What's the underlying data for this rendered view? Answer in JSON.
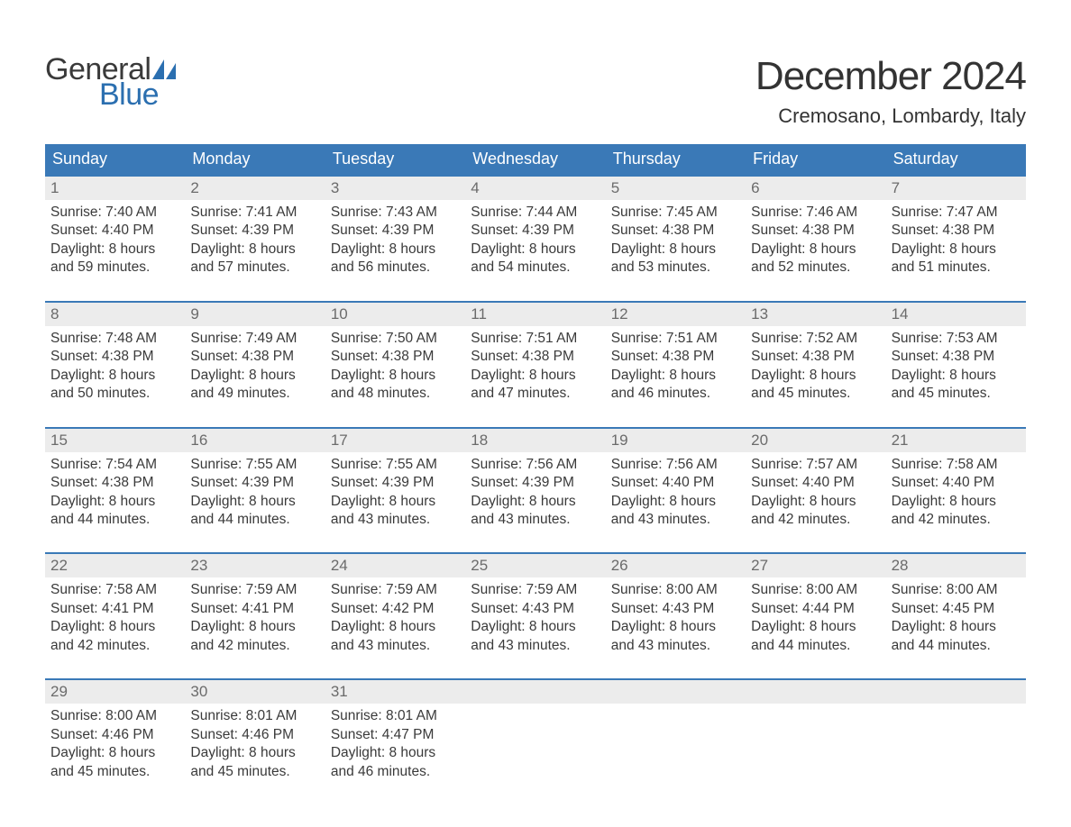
{
  "logo": {
    "text_general": "General",
    "text_blue": "Blue",
    "sail_color": "#2b6fb0"
  },
  "title": "December 2024",
  "location": "Cremosano, Lombardy, Italy",
  "colors": {
    "header_bg": "#3a79b7",
    "header_text": "#ffffff",
    "week_top_border": "#3a79b7",
    "daynum_bg": "#ececec",
    "daynum_text": "#6b6b6b",
    "body_text": "#3a3a3a",
    "page_bg": "#ffffff"
  },
  "day_names": [
    "Sunday",
    "Monday",
    "Tuesday",
    "Wednesday",
    "Thursday",
    "Friday",
    "Saturday"
  ],
  "labels": {
    "sunrise": "Sunrise: ",
    "sunset": "Sunset: ",
    "daylight": "Daylight: "
  },
  "weeks": [
    [
      {
        "n": "1",
        "sr": "7:40 AM",
        "ss": "4:40 PM",
        "dl": "8 hours and 59 minutes."
      },
      {
        "n": "2",
        "sr": "7:41 AM",
        "ss": "4:39 PM",
        "dl": "8 hours and 57 minutes."
      },
      {
        "n": "3",
        "sr": "7:43 AM",
        "ss": "4:39 PM",
        "dl": "8 hours and 56 minutes."
      },
      {
        "n": "4",
        "sr": "7:44 AM",
        "ss": "4:39 PM",
        "dl": "8 hours and 54 minutes."
      },
      {
        "n": "5",
        "sr": "7:45 AM",
        "ss": "4:38 PM",
        "dl": "8 hours and 53 minutes."
      },
      {
        "n": "6",
        "sr": "7:46 AM",
        "ss": "4:38 PM",
        "dl": "8 hours and 52 minutes."
      },
      {
        "n": "7",
        "sr": "7:47 AM",
        "ss": "4:38 PM",
        "dl": "8 hours and 51 minutes."
      }
    ],
    [
      {
        "n": "8",
        "sr": "7:48 AM",
        "ss": "4:38 PM",
        "dl": "8 hours and 50 minutes."
      },
      {
        "n": "9",
        "sr": "7:49 AM",
        "ss": "4:38 PM",
        "dl": "8 hours and 49 minutes."
      },
      {
        "n": "10",
        "sr": "7:50 AM",
        "ss": "4:38 PM",
        "dl": "8 hours and 48 minutes."
      },
      {
        "n": "11",
        "sr": "7:51 AM",
        "ss": "4:38 PM",
        "dl": "8 hours and 47 minutes."
      },
      {
        "n": "12",
        "sr": "7:51 AM",
        "ss": "4:38 PM",
        "dl": "8 hours and 46 minutes."
      },
      {
        "n": "13",
        "sr": "7:52 AM",
        "ss": "4:38 PM",
        "dl": "8 hours and 45 minutes."
      },
      {
        "n": "14",
        "sr": "7:53 AM",
        "ss": "4:38 PM",
        "dl": "8 hours and 45 minutes."
      }
    ],
    [
      {
        "n": "15",
        "sr": "7:54 AM",
        "ss": "4:38 PM",
        "dl": "8 hours and 44 minutes."
      },
      {
        "n": "16",
        "sr": "7:55 AM",
        "ss": "4:39 PM",
        "dl": "8 hours and 44 minutes."
      },
      {
        "n": "17",
        "sr": "7:55 AM",
        "ss": "4:39 PM",
        "dl": "8 hours and 43 minutes."
      },
      {
        "n": "18",
        "sr": "7:56 AM",
        "ss": "4:39 PM",
        "dl": "8 hours and 43 minutes."
      },
      {
        "n": "19",
        "sr": "7:56 AM",
        "ss": "4:40 PM",
        "dl": "8 hours and 43 minutes."
      },
      {
        "n": "20",
        "sr": "7:57 AM",
        "ss": "4:40 PM",
        "dl": "8 hours and 42 minutes."
      },
      {
        "n": "21",
        "sr": "7:58 AM",
        "ss": "4:40 PM",
        "dl": "8 hours and 42 minutes."
      }
    ],
    [
      {
        "n": "22",
        "sr": "7:58 AM",
        "ss": "4:41 PM",
        "dl": "8 hours and 42 minutes."
      },
      {
        "n": "23",
        "sr": "7:59 AM",
        "ss": "4:41 PM",
        "dl": "8 hours and 42 minutes."
      },
      {
        "n": "24",
        "sr": "7:59 AM",
        "ss": "4:42 PM",
        "dl": "8 hours and 43 minutes."
      },
      {
        "n": "25",
        "sr": "7:59 AM",
        "ss": "4:43 PM",
        "dl": "8 hours and 43 minutes."
      },
      {
        "n": "26",
        "sr": "8:00 AM",
        "ss": "4:43 PM",
        "dl": "8 hours and 43 minutes."
      },
      {
        "n": "27",
        "sr": "8:00 AM",
        "ss": "4:44 PM",
        "dl": "8 hours and 44 minutes."
      },
      {
        "n": "28",
        "sr": "8:00 AM",
        "ss": "4:45 PM",
        "dl": "8 hours and 44 minutes."
      }
    ],
    [
      {
        "n": "29",
        "sr": "8:00 AM",
        "ss": "4:46 PM",
        "dl": "8 hours and 45 minutes."
      },
      {
        "n": "30",
        "sr": "8:01 AM",
        "ss": "4:46 PM",
        "dl": "8 hours and 45 minutes."
      },
      {
        "n": "31",
        "sr": "8:01 AM",
        "ss": "4:47 PM",
        "dl": "8 hours and 46 minutes."
      },
      null,
      null,
      null,
      null
    ]
  ]
}
